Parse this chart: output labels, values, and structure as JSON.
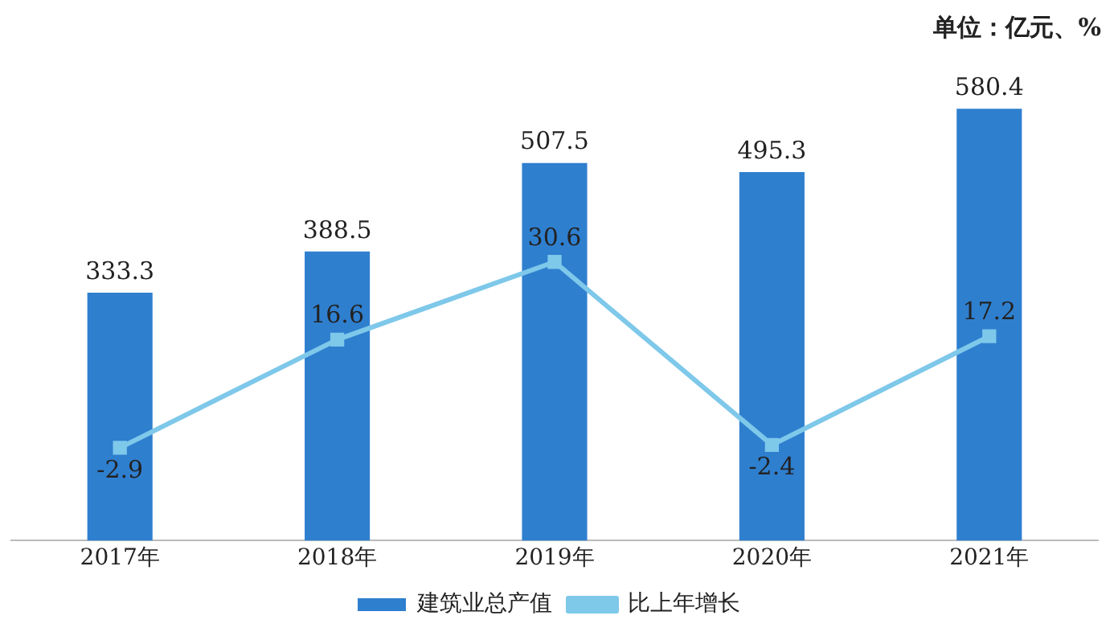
{
  "chart_data": {
    "type": "bar",
    "categories": [
      "2017年",
      "2018年",
      "2019年",
      "2020年",
      "2021年"
    ],
    "series": [
      {
        "name": "建筑业总产值",
        "color": "#2f7fcf",
        "values": [
          333.3,
          388.5,
          507.5,
          495.3,
          580.4
        ]
      },
      {
        "name": "比上年增长",
        "type": "line",
        "axis": "y2",
        "color": "#7ec8ea",
        "values": [
          -2.9,
          16.6,
          30.6,
          -2.4,
          17.2
        ]
      }
    ],
    "tick_labels": "x",
    "data_labels": true,
    "legend": "bottom",
    "marker": "square",
    "annotations": [
      "单位：亿元、%"
    ]
  }
}
